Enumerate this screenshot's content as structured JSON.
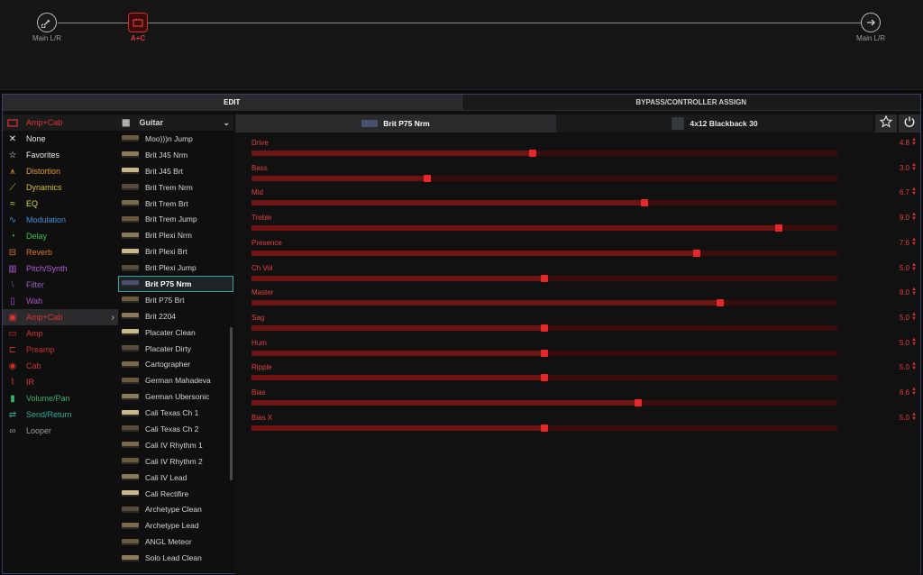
{
  "signal_chain": {
    "input_label": "Main L/R",
    "block_label": "A+C",
    "output_label": "Main L/R"
  },
  "tabs": {
    "edit": "EDIT",
    "bypass": "BYPASS/CONTROLLER ASSIGN"
  },
  "categories": {
    "header": "Amp+Cab",
    "items": [
      {
        "label": "None",
        "icon": "close-icon",
        "color": "#e8e8e8"
      },
      {
        "label": "Favorites",
        "icon": "star-icon",
        "color": "#e8e8e8"
      },
      {
        "label": "Distortion",
        "icon": "distortion-icon",
        "color": "#e39a2a"
      },
      {
        "label": "Dynamics",
        "icon": "dynamics-icon",
        "color": "#d6bf2f"
      },
      {
        "label": "EQ",
        "icon": "eq-icon",
        "color": "#d8d84a"
      },
      {
        "label": "Modulation",
        "icon": "modulation-icon",
        "color": "#3a8fd8"
      },
      {
        "label": "Delay",
        "icon": "delay-icon",
        "color": "#37c247"
      },
      {
        "label": "Reverb",
        "icon": "reverb-icon",
        "color": "#e0762a"
      },
      {
        "label": "Pitch/Synth",
        "icon": "pitch-synth-icon",
        "color": "#b659d8"
      },
      {
        "label": "Filter",
        "icon": "filter-icon",
        "color": "#9860c8"
      },
      {
        "label": "Wah",
        "icon": "wah-icon",
        "color": "#a754c8"
      },
      {
        "label": "Amp+Cab",
        "icon": "amp-cab-icon",
        "color": "#e03333"
      },
      {
        "label": "Amp",
        "icon": "amp-icon",
        "color": "#d53232"
      },
      {
        "label": "Preamp",
        "icon": "preamp-icon",
        "color": "#c23030"
      },
      {
        "label": "Cab",
        "icon": "cab-icon",
        "color": "#c82f2f"
      },
      {
        "label": "IR",
        "icon": "ir-icon",
        "color": "#d43c3c"
      },
      {
        "label": "Volume/Pan",
        "icon": "volume-pan-icon",
        "color": "#39b26b"
      },
      {
        "label": "Send/Return",
        "icon": "send-return-icon",
        "color": "#2faa9a"
      },
      {
        "label": "Looper",
        "icon": "looper-icon",
        "color": "#9a9a9a"
      }
    ]
  },
  "models": {
    "header": "Guitar",
    "items": [
      "Moo)))n Jump",
      "Brit J45 Nrm",
      "Brit J45 Brt",
      "Brit Trem Nrm",
      "Brit Trem Brt",
      "Brit Trem Jump",
      "Brit Plexi Nrm",
      "Brit Plexi Brt",
      "Brit Plexi Jump",
      "Brit P75 Nrm",
      "Brit P75 Brt",
      "Brit 2204",
      "Placater Clean",
      "Placater Dirty",
      "Cartographer",
      "German Mahadeva",
      "German Ubersonic",
      "Cali Texas Ch 1",
      "Cali Texas Ch 2",
      "Cali IV Rhythm 1",
      "Cali IV Rhythm 2",
      "Cali IV Lead",
      "Cali Rectifire",
      "Archetype Clean",
      "Archetype Lead",
      "ANGL Meteor",
      "Solo Lead Clean"
    ],
    "selected": "Brit P75 Nrm"
  },
  "editor": {
    "amp_name": "Brit P75 Nrm",
    "cab_name": "4x12 Blackback 30",
    "params": [
      {
        "name": "Drive",
        "value": "4.8",
        "level": 0.48
      },
      {
        "name": "Bass",
        "value": "3.0",
        "level": 0.3
      },
      {
        "name": "Mid",
        "value": "6.7",
        "level": 0.67
      },
      {
        "name": "Treble",
        "value": "9.0",
        "level": 0.9
      },
      {
        "name": "Presence",
        "value": "7.6",
        "level": 0.76
      },
      {
        "name": "Ch Vol",
        "value": "5.0",
        "level": 0.5
      },
      {
        "name": "Master",
        "value": "8.0",
        "level": 0.8
      },
      {
        "name": "Sag",
        "value": "5.0",
        "level": 0.5
      },
      {
        "name": "Hum",
        "value": "5.0",
        "level": 0.5
      },
      {
        "name": "Ripple",
        "value": "5.0",
        "level": 0.5
      },
      {
        "name": "Bias",
        "value": "6.6",
        "level": 0.66
      },
      {
        "name": "Bias X",
        "value": "5.0",
        "level": 0.5
      }
    ]
  }
}
